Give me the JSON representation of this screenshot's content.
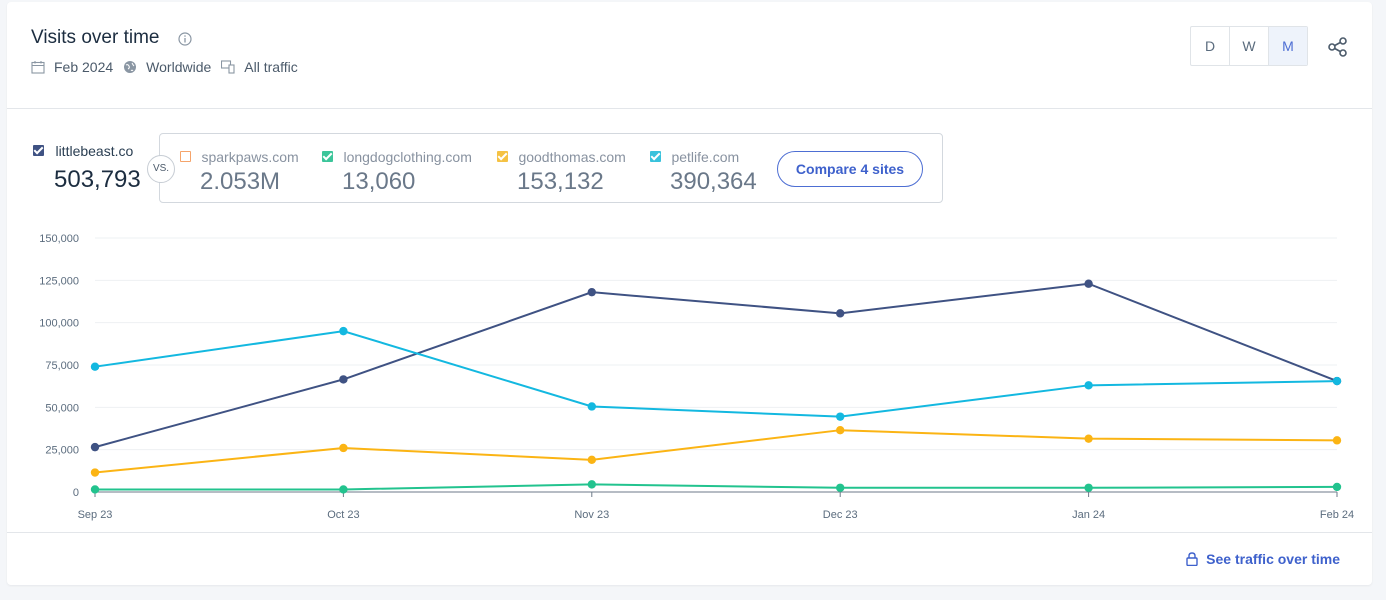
{
  "header": {
    "title": "Visits over time",
    "date": "Feb 2024",
    "region": "Worldwide",
    "traffic": "All traffic",
    "granularity": [
      "D",
      "W",
      "M"
    ],
    "active_granularity": "M"
  },
  "primary": {
    "site": "littlebeast.co",
    "value": "503,793",
    "color": "#3f5283"
  },
  "vs_label": "VS.",
  "competitors": [
    {
      "site": "sparkpaws.com",
      "value": "2.053M",
      "color": "#f5a46b",
      "checked": false
    },
    {
      "site": "longdogclothing.com",
      "value": "13,060",
      "color": "#3cc59a",
      "checked": true
    },
    {
      "site": "goodthomas.com",
      "value": "153,132",
      "color": "#f5c244",
      "checked": true
    },
    {
      "site": "petlife.com",
      "value": "390,364",
      "color": "#39c2dc",
      "checked": true
    }
  ],
  "compare_button": "Compare 4 sites",
  "footer": {
    "link": "See traffic over time"
  },
  "chart_data": {
    "type": "line",
    "categories": [
      "Sep 23",
      "Oct 23",
      "Nov 23",
      "Dec 23",
      "Jan 24",
      "Feb 24"
    ],
    "ylim": [
      0,
      150000
    ],
    "yticks": [
      0,
      25000,
      50000,
      75000,
      100000,
      125000,
      150000
    ],
    "ytick_labels": [
      "0",
      "25,000",
      "50,000",
      "75,000",
      "100,000",
      "125,000",
      "150,000"
    ],
    "grid": true,
    "series": [
      {
        "name": "littlebeast.co",
        "color": "#3f5283",
        "values": [
          26500,
          66500,
          118000,
          105500,
          123000,
          65500
        ]
      },
      {
        "name": "petlife.com",
        "color": "#13b8e0",
        "values": [
          74000,
          95000,
          50500,
          44500,
          63000,
          65500
        ]
      },
      {
        "name": "goodthomas.com",
        "color": "#fbb414",
        "values": [
          11500,
          26000,
          19000,
          36500,
          31500,
          30500
        ]
      },
      {
        "name": "longdogclothing.com",
        "color": "#22c38e",
        "values": [
          1500,
          1500,
          4500,
          2500,
          2500,
          3000
        ]
      }
    ]
  }
}
